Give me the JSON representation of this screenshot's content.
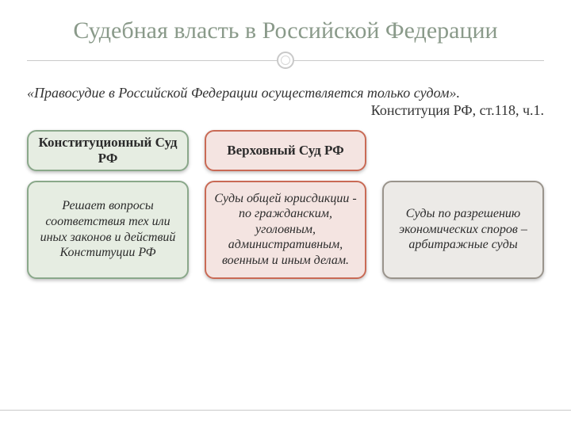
{
  "title": "Судебная власть в Российской Федерации",
  "quote": "«Правосудие в Российской Федерации осуществляется только судом».",
  "citation": "Конституция РФ, ст.118, ч.1.",
  "columns": [
    {
      "header": "Конституционный Суд РФ",
      "body": "Решает вопросы соответствия тех или иных законов и действий Конституции РФ",
      "style": {
        "fill": "#e6ede2",
        "border": "#8aa88a",
        "text": "#2b2b2b"
      }
    },
    {
      "header": "Верховный Суд РФ",
      "body": "Суды общей юрисдикции - по гражданским, уголовным, административным, военным и иным делам.",
      "style": {
        "fill": "#f4e4e1",
        "border": "#c96a55",
        "text": "#2b2b2b"
      }
    },
    {
      "header": "",
      "body": "Суды по разрешению экономических споров – арбитражные суды",
      "style": {
        "fill": "#eceae7",
        "border": "#9a948c",
        "text": "#2b2b2b"
      }
    }
  ],
  "accent": {
    "title_color": "#8a9a8a",
    "rule_color": "#c9c9c9"
  }
}
